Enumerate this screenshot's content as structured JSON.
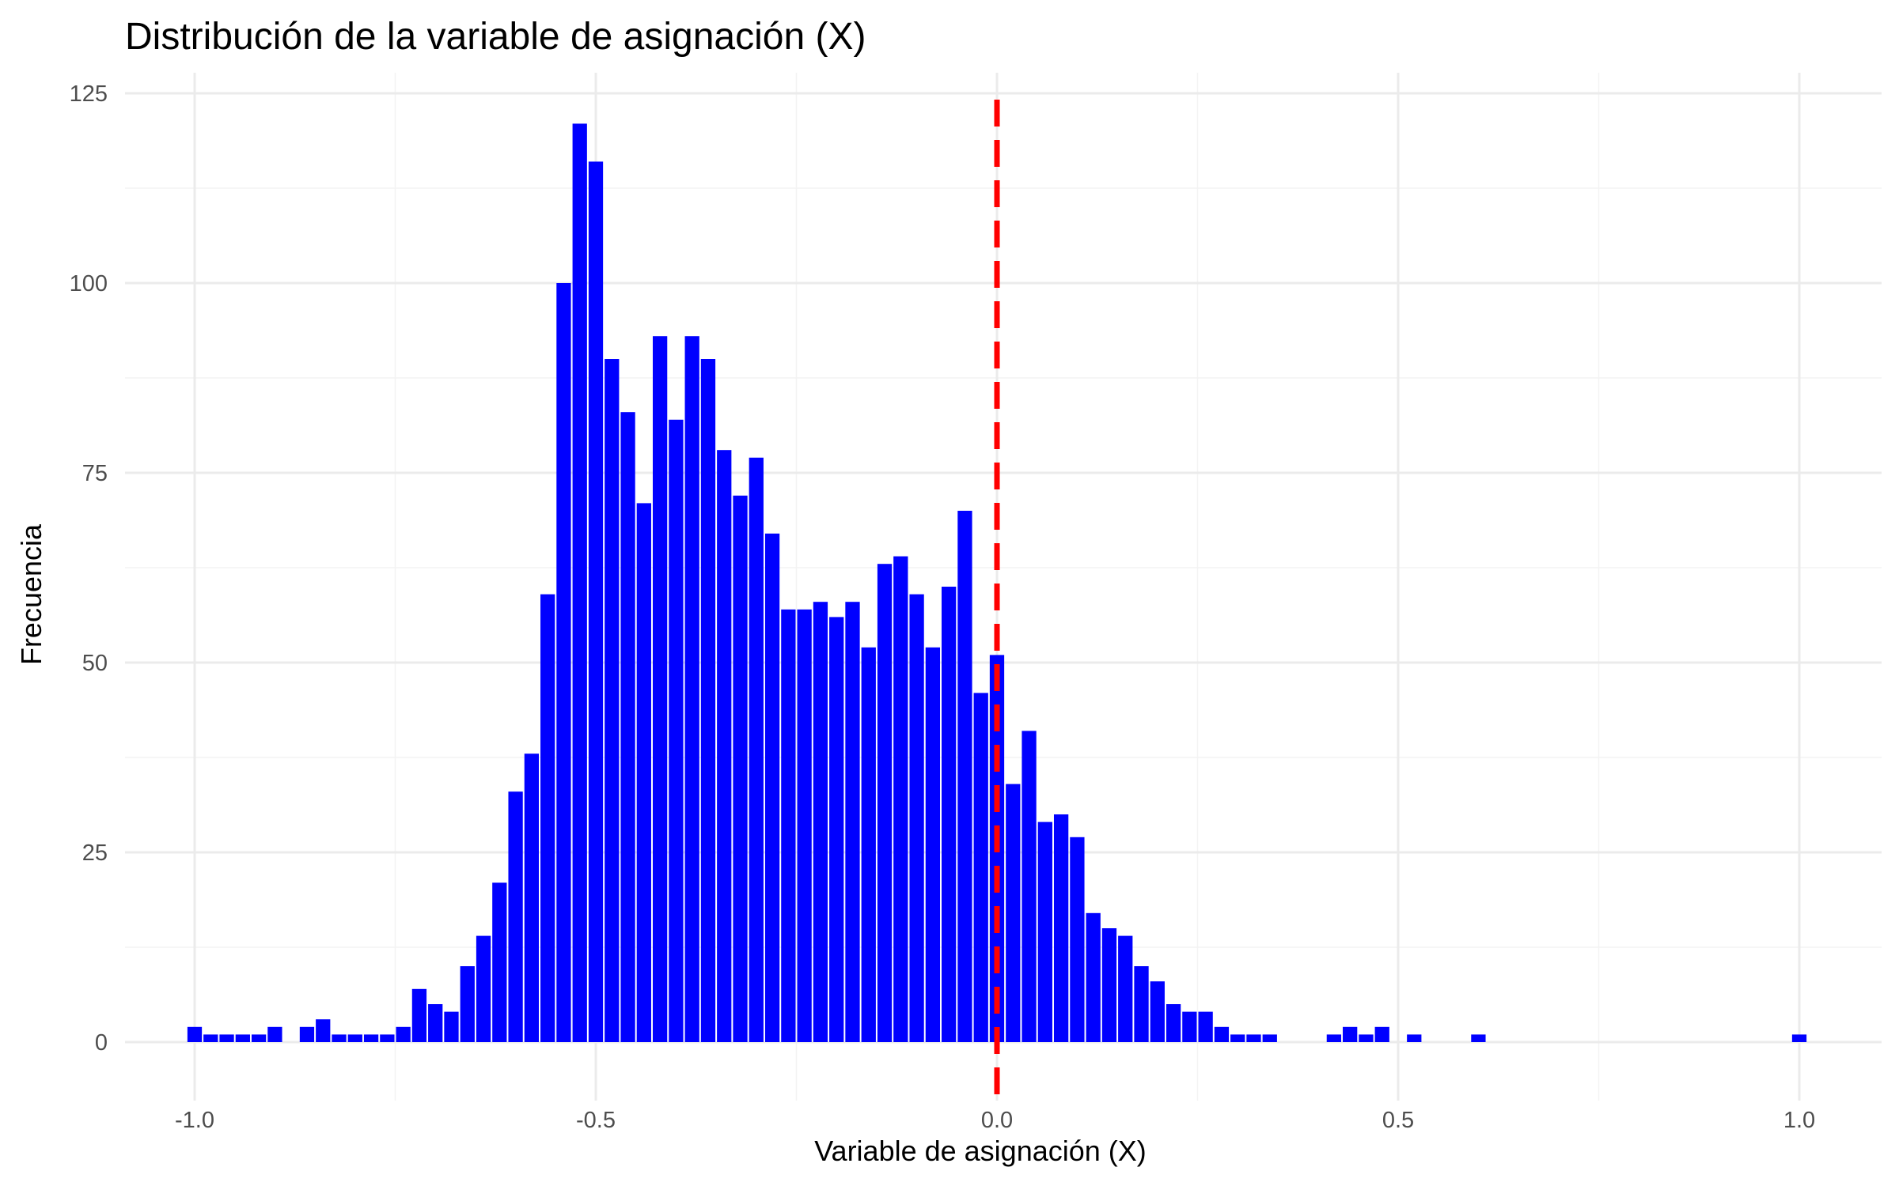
{
  "chart_data": {
    "type": "bar",
    "title": "Distribución de la variable de asignación (X)",
    "xlabel": "Variable de asignación (X)",
    "ylabel": "Frecuencia",
    "xlim": [
      -1.1,
      1.1
    ],
    "ylim": [
      0,
      125
    ],
    "x_ticks": [
      -1.0,
      -0.5,
      0.0,
      0.5,
      1.0
    ],
    "x_tick_labels": [
      "-1.0",
      "-0.5",
      "0.0",
      "0.5",
      "1.0"
    ],
    "y_ticks": [
      0,
      25,
      50,
      75,
      100,
      125
    ],
    "y_tick_labels": [
      "0",
      "25",
      "50",
      "75",
      "100",
      "125"
    ],
    "bin_width": 0.02,
    "bin_centers": [
      -1.0,
      -0.98,
      -0.96,
      -0.94,
      -0.92,
      -0.9,
      -0.88,
      -0.86,
      -0.84,
      -0.82,
      -0.8,
      -0.78,
      -0.76,
      -0.74,
      -0.72,
      -0.7,
      -0.68,
      -0.66,
      -0.64,
      -0.62,
      -0.6,
      -0.58,
      -0.56,
      -0.54,
      -0.52,
      -0.5,
      -0.48,
      -0.46,
      -0.44,
      -0.42,
      -0.4,
      -0.38,
      -0.36,
      -0.34,
      -0.32,
      -0.3,
      -0.28,
      -0.26,
      -0.24,
      -0.22,
      -0.2,
      -0.18,
      -0.16,
      -0.14,
      -0.12,
      -0.1,
      -0.08,
      -0.06,
      -0.04,
      -0.02,
      0.0,
      0.02,
      0.04,
      0.06,
      0.08,
      0.1,
      0.12,
      0.14,
      0.16,
      0.18,
      0.2,
      0.22,
      0.24,
      0.26,
      0.28,
      0.3,
      0.32,
      0.34,
      0.36,
      0.38,
      0.4,
      0.42,
      0.44,
      0.46,
      0.48,
      0.5,
      0.52,
      0.54,
      0.56,
      0.58,
      0.6,
      0.62,
      0.64,
      0.66,
      0.68,
      0.7,
      0.72,
      0.74,
      0.76,
      0.78,
      0.8,
      0.82,
      0.84,
      0.86,
      0.88,
      0.9,
      0.92,
      0.94,
      0.96,
      0.98,
      1.0
    ],
    "values": [
      2,
      1,
      1,
      1,
      1,
      2,
      0,
      2,
      3,
      1,
      1,
      1,
      1,
      2,
      7,
      5,
      4,
      10,
      14,
      21,
      33,
      38,
      59,
      100,
      121,
      116,
      90,
      83,
      71,
      93,
      82,
      93,
      90,
      78,
      72,
      77,
      67,
      57,
      57,
      58,
      56,
      58,
      52,
      63,
      64,
      59,
      52,
      60,
      70,
      46,
      51,
      34,
      41,
      29,
      30,
      27,
      17,
      15,
      14,
      10,
      8,
      5,
      4,
      4,
      2,
      1,
      1,
      1,
      0,
      0,
      0,
      1,
      2,
      1,
      2,
      0,
      1,
      0,
      0,
      0,
      1,
      0,
      0,
      0,
      0,
      0,
      0,
      0,
      0,
      0,
      0,
      0,
      0,
      0,
      0,
      0,
      0,
      0,
      0,
      0,
      1
    ],
    "reference_line": {
      "x": 0.0,
      "color": "#ff0000",
      "style": "dashed"
    },
    "bar_color": "#0000ff",
    "grid": true,
    "legend": "none"
  }
}
